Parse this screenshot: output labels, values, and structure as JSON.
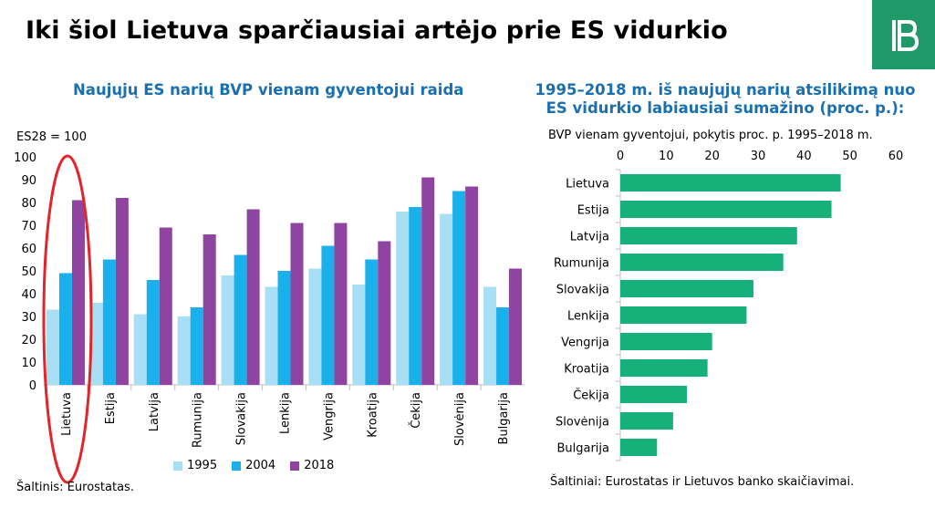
{
  "header": {
    "title": "Iki šiol Lietuva sparčiausiai artėjo prie ES vidurkio"
  },
  "colors": {
    "brand": "#1f9968",
    "accent_text": "#1a6fb0",
    "highlight_ellipse": "#e1262b"
  },
  "left_panel": {
    "subtitle": "Naujųjų ES narių BVP vienam gyventojui raida",
    "unit_label": "ES28 = 100",
    "source": "Šaltinis: Eurostatas."
  },
  "right_panel": {
    "subtitle_line1": "1995–2018 m. iš naujųjų narių atsilikimą nuo",
    "subtitle_line2": "ES vidurkio labiausiai sumažino (proc. p.):",
    "axis_caption": "BVP vienam gyventojui, pokytis proc. p. 1995–2018 m.",
    "source": "Šaltiniai: Eurostatas ir Lietuvos banko skaičiavimai."
  },
  "chart_data": [
    {
      "type": "bar",
      "orientation": "vertical",
      "categories": [
        "Lietuva",
        "Estija",
        "Latvija",
        "Rumunija",
        "Slovakija",
        "Lenkija",
        "Vengrija",
        "Kroatija",
        "Čekija",
        "Slovėnija",
        "Bulgarija"
      ],
      "series": [
        {
          "name": "1995",
          "color": "#a9dff5",
          "values": [
            33,
            36,
            31,
            30,
            48,
            43,
            51,
            44,
            76,
            75,
            43
          ]
        },
        {
          "name": "2004",
          "color": "#1ab0ec",
          "values": [
            49,
            55,
            46,
            34,
            57,
            50,
            61,
            55,
            78,
            85,
            34
          ]
        },
        {
          "name": "2018",
          "color": "#8e44a0",
          "values": [
            81,
            82,
            69,
            66,
            77,
            71,
            71,
            63,
            91,
            87,
            51
          ]
        }
      ],
      "ylim": [
        0,
        100
      ],
      "yticks": [
        0,
        10,
        20,
        30,
        40,
        50,
        60,
        70,
        80,
        90,
        100
      ],
      "legend_position": "bottom",
      "grid": false,
      "highlighted_category": "Lietuva"
    },
    {
      "type": "bar",
      "orientation": "horizontal",
      "categories": [
        "Lietuva",
        "Estija",
        "Latvija",
        "Rumunija",
        "Slovakija",
        "Lenkija",
        "Vengrija",
        "Kroatija",
        "Čekija",
        "Slovėnija",
        "Bulgarija"
      ],
      "values": [
        48,
        46,
        38.5,
        35.5,
        29,
        27.5,
        20,
        19,
        14.5,
        11.5,
        8
      ],
      "color": "#16b07a",
      "xlim": [
        0,
        60
      ],
      "xticks": [
        0,
        10,
        20,
        30,
        40,
        50,
        60
      ],
      "xaxis_position": "top",
      "grid": false
    }
  ]
}
